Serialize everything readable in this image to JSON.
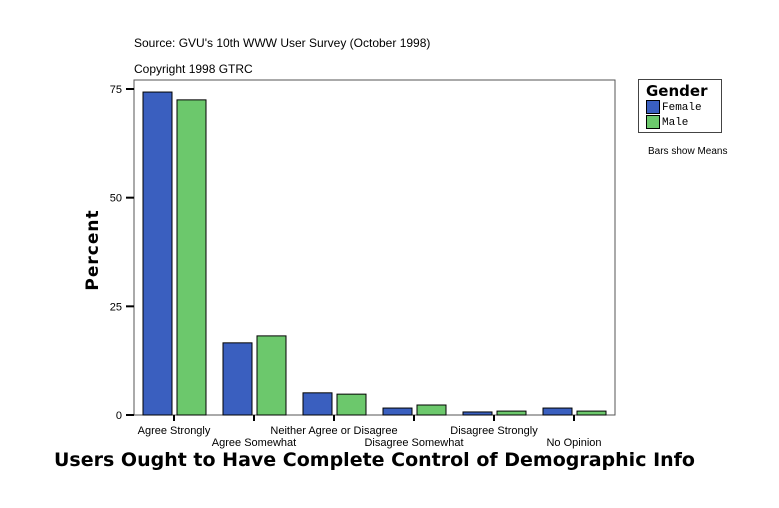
{
  "source": "Source: GVU's 10th WWW User Survey (October 1998)",
  "copyright": "Copyright 1998 GTRC",
  "note": "Bars show Means",
  "chart_data": {
    "type": "bar",
    "title": "Users Ought to Have Complete Control of Demographic Info",
    "xlabel": "",
    "ylabel": "Percent",
    "ylim": [
      0,
      75
    ],
    "yticks": [
      0,
      25,
      50,
      75
    ],
    "grid": false,
    "legend_title": "Gender",
    "legend_placement": "right",
    "categories": [
      "Agree Strongly",
      "Agree Somewhat",
      "Neither Agree or Disagree",
      "Disagree Somewhat",
      "Disagree Strongly",
      "No Opinion"
    ],
    "series": [
      {
        "name": "Female",
        "color": "#3a5fbf",
        "values": [
          74.3,
          16.6,
          5.1,
          1.6,
          0.7,
          1.6
        ]
      },
      {
        "name": "Male",
        "color": "#6cc86c",
        "values": [
          72.5,
          18.2,
          4.8,
          2.3,
          0.9,
          0.9
        ]
      }
    ]
  }
}
